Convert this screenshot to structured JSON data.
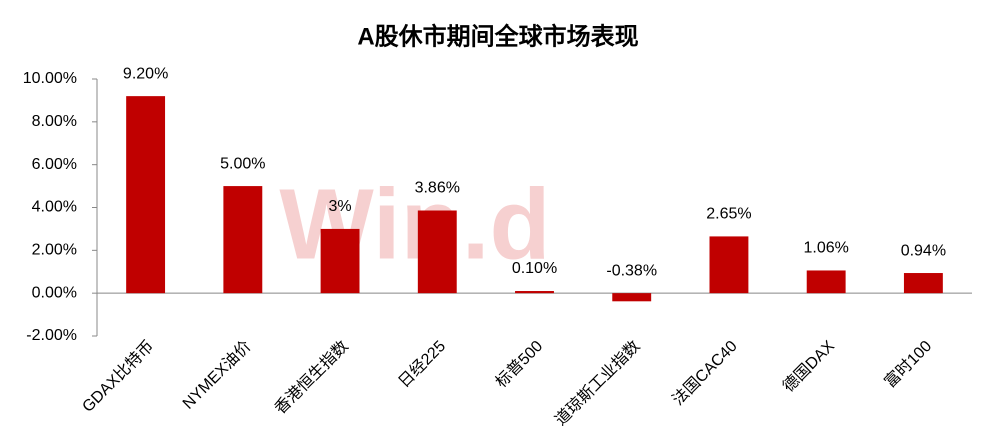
{
  "chart_data": {
    "type": "bar",
    "title": "A股休市期间全球市场表现",
    "watermark": "Win.d",
    "categories": [
      "GDAX比特币",
      "NYMEX油价",
      "香港恒生指数",
      "日经225",
      "标普500",
      "道琼斯工业指数",
      "法国CAC40",
      "德国DAX",
      "富时100"
    ],
    "values": [
      9.2,
      5,
      3,
      3.86,
      0.1,
      -0.38,
      2.65,
      1.06,
      0.94
    ],
    "value_labels": [
      "9.20%",
      "5.00%",
      "3%",
      "3.86%",
      "0.10%",
      "-0.38%",
      "2.65%",
      "1.06%",
      "0.94%"
    ],
    "color": "#c00000",
    "ylim": [
      -2,
      10
    ],
    "yticks": [
      {
        "value": -2,
        "label": "-2.00%"
      },
      {
        "value": 0,
        "label": "0.00%"
      },
      {
        "value": 2,
        "label": "2.00%"
      },
      {
        "value": 4,
        "label": "4.00%"
      },
      {
        "value": 6,
        "label": "6.00%"
      },
      {
        "value": 8,
        "label": "8.00%"
      },
      {
        "value": 10,
        "label": "10.00%"
      }
    ],
    "grid": false
  }
}
